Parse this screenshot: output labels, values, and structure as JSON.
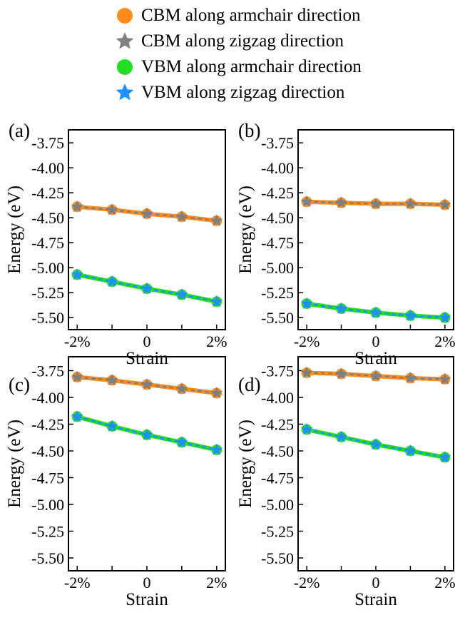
{
  "legend": [
    {
      "label": "CBM along armchair direction",
      "marker": "circle",
      "color": "#ff8c1a"
    },
    {
      "label": "CBM along zigzag direction",
      "marker": "star",
      "color": "#808080"
    },
    {
      "label": "VBM along armchair direction",
      "marker": "circle",
      "color": "#22dd22"
    },
    {
      "label": "VBM along zigzag direction",
      "marker": "star",
      "color": "#1e90ff"
    }
  ],
  "chart_data": [
    {
      "panel_label": "(a)",
      "type": "line",
      "xlabel": "Strain",
      "ylabel": "Energy (eV)",
      "x_ticks": [
        "-2%",
        "",
        "0",
        "",
        "2%"
      ],
      "y_ticks": [
        "-3.75",
        "-4.00",
        "-4.25",
        "-4.50",
        "-4.75",
        "-5.00",
        "-5.25",
        "-5.50"
      ],
      "x": [
        -2,
        -1,
        0,
        1,
        2
      ],
      "xlim": [
        -2.25,
        2.25
      ],
      "ylim": [
        -5.62,
        -3.62
      ],
      "series": [
        {
          "name": "CBM along armchair direction",
          "values": [
            -4.39,
            -4.42,
            -4.46,
            -4.49,
            -4.53
          ]
        },
        {
          "name": "CBM along zigzag direction",
          "values": [
            -4.39,
            -4.42,
            -4.46,
            -4.49,
            -4.53
          ]
        },
        {
          "name": "VBM along armchair direction",
          "values": [
            -5.07,
            -5.14,
            -5.21,
            -5.27,
            -5.34
          ]
        },
        {
          "name": "VBM along zigzag direction",
          "values": [
            -5.07,
            -5.14,
            -5.21,
            -5.27,
            -5.34
          ]
        }
      ]
    },
    {
      "panel_label": "(b)",
      "type": "line",
      "xlabel": "Strain",
      "ylabel": "Energy (eV)",
      "x_ticks": [
        "-2%",
        "",
        "0",
        "",
        "2%"
      ],
      "y_ticks": [
        "-3.75",
        "-4.00",
        "-4.25",
        "-4.50",
        "-4.75",
        "-5.00",
        "-5.25",
        "-5.50"
      ],
      "x": [
        -2,
        -1,
        0,
        1,
        2
      ],
      "xlim": [
        -2.25,
        2.25
      ],
      "ylim": [
        -5.62,
        -3.62
      ],
      "series": [
        {
          "name": "CBM along armchair direction",
          "values": [
            -4.34,
            -4.35,
            -4.36,
            -4.36,
            -4.37
          ]
        },
        {
          "name": "CBM along zigzag direction",
          "values": [
            -4.34,
            -4.35,
            -4.36,
            -4.36,
            -4.37
          ]
        },
        {
          "name": "VBM along armchair direction",
          "values": [
            -5.36,
            -5.41,
            -5.45,
            -5.48,
            -5.5
          ]
        },
        {
          "name": "VBM along zigzag direction",
          "values": [
            -5.36,
            -5.41,
            -5.45,
            -5.48,
            -5.5
          ]
        }
      ]
    },
    {
      "panel_label": "(c)",
      "type": "line",
      "xlabel": "Strain",
      "ylabel": "Energy (eV)",
      "x_ticks": [
        "-2%",
        "",
        "0",
        "",
        "2%"
      ],
      "y_ticks": [
        "-3.75",
        "-4.00",
        "-4.25",
        "-4.50",
        "-4.75",
        "-5.00",
        "-5.25",
        "-5.50"
      ],
      "x": [
        -2,
        -1,
        0,
        1,
        2
      ],
      "xlim": [
        -2.25,
        2.25
      ],
      "ylim": [
        -5.62,
        -3.62
      ],
      "series": [
        {
          "name": "CBM along armchair direction",
          "values": [
            -3.81,
            -3.84,
            -3.88,
            -3.92,
            -3.96
          ]
        },
        {
          "name": "CBM along zigzag direction",
          "values": [
            -3.81,
            -3.84,
            -3.88,
            -3.92,
            -3.96
          ]
        },
        {
          "name": "VBM along armchair direction",
          "values": [
            -4.18,
            -4.27,
            -4.35,
            -4.42,
            -4.49
          ]
        },
        {
          "name": "VBM along zigzag direction",
          "values": [
            -4.18,
            -4.27,
            -4.35,
            -4.42,
            -4.49
          ]
        }
      ]
    },
    {
      "panel_label": "(d)",
      "type": "line",
      "xlabel": "Strain",
      "ylabel": "Energy (eV)",
      "x_ticks": [
        "-2%",
        "",
        "0",
        "",
        "2%"
      ],
      "y_ticks": [
        "-3.75",
        "-4.00",
        "-4.25",
        "-4.50",
        "-4.75",
        "-5.00",
        "-5.25",
        "-5.50"
      ],
      "x": [
        -2,
        -1,
        0,
        1,
        2
      ],
      "xlim": [
        -2.25,
        2.25
      ],
      "ylim": [
        -5.62,
        -3.62
      ],
      "series": [
        {
          "name": "CBM along armchair direction",
          "values": [
            -3.77,
            -3.78,
            -3.8,
            -3.82,
            -3.83
          ]
        },
        {
          "name": "CBM along zigzag direction",
          "values": [
            -3.77,
            -3.78,
            -3.8,
            -3.82,
            -3.83
          ]
        },
        {
          "name": "VBM along armchair direction",
          "values": [
            -4.3,
            -4.37,
            -4.44,
            -4.5,
            -4.56
          ]
        },
        {
          "name": "VBM along zigzag direction",
          "values": [
            -4.3,
            -4.37,
            -4.44,
            -4.5,
            -4.56
          ]
        }
      ]
    }
  ]
}
